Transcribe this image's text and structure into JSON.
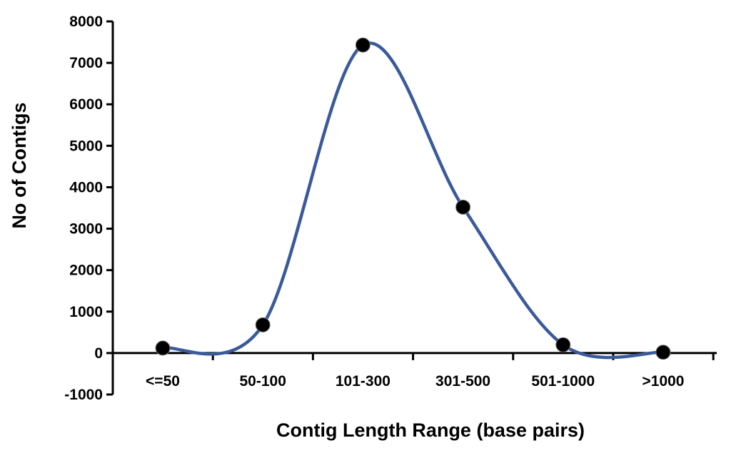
{
  "chart_data": {
    "type": "line",
    "title": "",
    "xlabel": "Contig Length Range (base pairs)",
    "ylabel": "No of Contigs",
    "categories": [
      "<=50",
      "50-100",
      "101-300",
      "301-500",
      "501-1000",
      ">1000"
    ],
    "y_ticks": [
      "-1000",
      "0",
      "1000",
      "2000",
      "3000",
      "4000",
      "5000",
      "6000",
      "7000",
      "8000"
    ],
    "ylim": [
      -1000,
      8000
    ],
    "series": [
      {
        "values": [
          120,
          680,
          7430,
          3520,
          200,
          20
        ]
      }
    ],
    "line_color": "#3a5a9b",
    "marker_color": "#000000",
    "smooth": true,
    "grid": false,
    "legend": "none"
  }
}
